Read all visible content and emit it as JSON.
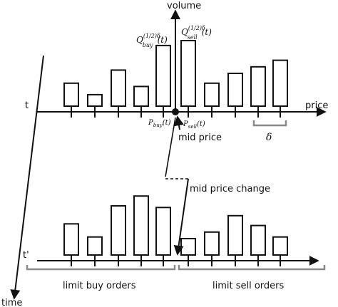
{
  "labels": {
    "volume": "volume",
    "price": "price",
    "time": "time",
    "t": "t",
    "t_prime": "t'",
    "mid_price": "mid price",
    "mid_price_change": "mid price change",
    "limit_buy_orders": "limit buy orders",
    "limit_sell_orders": "limit sell orders",
    "delta": "δ",
    "q_buy": "Q",
    "q_buy_sup": "(1/2)δ",
    "q_buy_sub": "buy",
    "q_buy_arg": "(t)",
    "q_sell": "Q",
    "q_sell_sup": "(1/2)δ",
    "q_sell_sub": "sell",
    "q_sell_arg": "(t)",
    "p_buy": "P",
    "p_buy_sub": "buy",
    "p_buy_arg": "(t)",
    "p_sell": "P",
    "p_sell_sub": "sell",
    "p_sell_arg": "(t)"
  },
  "order_book_t": {
    "buy_volumes": [
      1.4,
      0.7,
      2.2,
      1.2,
      3.7
    ],
    "sell_volumes": [
      4.0,
      1.4,
      2.0,
      2.4,
      2.8
    ]
  },
  "order_book_t_prime": {
    "buy_volumes": [
      1.9,
      1.1,
      3.0,
      3.6,
      2.9
    ],
    "sell_volumes": [
      1.0,
      1.4,
      2.4,
      1.8,
      1.1
    ]
  }
}
